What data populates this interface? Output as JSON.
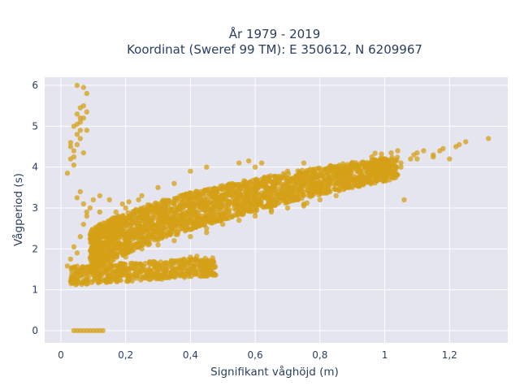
{
  "chart_data": {
    "type": "scatter",
    "title_line1": "År 1979 - 2019",
    "title_line2": "Koordinat (Sweref 99 TM): E 350612, N 6209967",
    "xlabel": "Signifikant våghöjd (m)",
    "ylabel": "Vågperiod (s)",
    "xlim": [
      -0.05,
      1.38
    ],
    "ylim": [
      -0.3,
      6.2
    ],
    "x_ticks": [
      0,
      0.2,
      0.4,
      0.6,
      0.8,
      1,
      1.2
    ],
    "x_tick_labels": [
      "0",
      "0,2",
      "0,4",
      "0,6",
      "0,8",
      "1",
      "1,2"
    ],
    "y_ticks": [
      0,
      1,
      2,
      3,
      4,
      5,
      6
    ],
    "y_tick_labels": [
      "0",
      "1",
      "2",
      "3",
      "4",
      "5",
      "6"
    ],
    "grid": true,
    "plot_bgcolor": "#E5E5F0",
    "marker_color": "#D4A017",
    "series": [
      {
        "points": [
          [
            0.04,
            0
          ],
          [
            0.05,
            0
          ],
          [
            0.06,
            0
          ],
          [
            0.07,
            0
          ],
          [
            0.08,
            0
          ],
          [
            0.09,
            0
          ],
          [
            0.1,
            0
          ],
          [
            0.11,
            0
          ],
          [
            0.12,
            0
          ],
          [
            0.13,
            0
          ],
          [
            0.02,
            1.58
          ],
          [
            0.03,
            1.2
          ],
          [
            0.03,
            1.75
          ],
          [
            0.04,
            1.35
          ],
          [
            0.04,
            2.05
          ],
          [
            0.05,
            1.15
          ],
          [
            0.05,
            1.9
          ],
          [
            0.06,
            2.3
          ],
          [
            0.06,
            1.5
          ],
          [
            0.07,
            2.6
          ],
          [
            0.08,
            1.25
          ],
          [
            0.08,
            2.8
          ],
          [
            0.09,
            3.0
          ],
          [
            0.1,
            2.2
          ],
          [
            0.1,
            3.2
          ],
          [
            0.11,
            1.4
          ],
          [
            0.12,
            2.9
          ],
          [
            0.12,
            3.3
          ],
          [
            0.14,
            2.5
          ],
          [
            0.15,
            3.2
          ],
          [
            0.03,
            4.2
          ],
          [
            0.03,
            4.6
          ],
          [
            0.04,
            4.4
          ],
          [
            0.04,
            5.0
          ],
          [
            0.05,
            4.8
          ],
          [
            0.05,
            5.3
          ],
          [
            0.06,
            5.1
          ],
          [
            0.06,
            5.45
          ],
          [
            0.07,
            5.2
          ],
          [
            0.07,
            5.5
          ],
          [
            0.08,
            4.9
          ],
          [
            0.08,
            5.8
          ],
          [
            0.05,
            6.0
          ],
          [
            0.07,
            5.95
          ],
          [
            0.06,
            5.2
          ],
          [
            0.04,
            4.05
          ],
          [
            0.03,
            4.5
          ],
          [
            0.06,
            4.7
          ],
          [
            0.08,
            5.35
          ],
          [
            0.07,
            4.35
          ],
          [
            0.02,
            3.85
          ],
          [
            0.04,
            4.25
          ],
          [
            0.05,
            4.55
          ],
          [
            0.06,
            4.9
          ],
          [
            0.05,
            5.05
          ],
          [
            0.06,
            3.4
          ],
          [
            0.07,
            3.1
          ],
          [
            0.08,
            2.9
          ],
          [
            0.05,
            3.25
          ],
          [
            0.15,
            1.3
          ],
          [
            0.2,
            1.35
          ],
          [
            0.25,
            1.45
          ],
          [
            0.3,
            1.6
          ],
          [
            0.35,
            1.7
          ],
          [
            0.4,
            1.8
          ],
          [
            0.15,
            2.0
          ],
          [
            0.2,
            2.3
          ],
          [
            0.25,
            2.5
          ],
          [
            0.3,
            2.7
          ],
          [
            0.35,
            2.9
          ],
          [
            0.4,
            3.0
          ],
          [
            0.45,
            3.1
          ],
          [
            0.5,
            3.2
          ],
          [
            0.55,
            3.3
          ],
          [
            0.6,
            3.4
          ],
          [
            0.65,
            3.5
          ],
          [
            0.7,
            3.6
          ],
          [
            0.75,
            3.7
          ],
          [
            0.8,
            3.8
          ],
          [
            0.85,
            3.9
          ],
          [
            0.9,
            4.0
          ],
          [
            0.95,
            4.1
          ],
          [
            1.0,
            4.2
          ],
          [
            0.25,
            3.3
          ],
          [
            0.3,
            3.5
          ],
          [
            0.35,
            3.6
          ],
          [
            0.4,
            3.9
          ],
          [
            0.45,
            4.0
          ],
          [
            0.55,
            4.1
          ],
          [
            0.6,
            4.0
          ],
          [
            0.7,
            3.9
          ],
          [
            0.45,
            2.4
          ],
          [
            0.5,
            2.6
          ],
          [
            0.55,
            2.7
          ],
          [
            0.6,
            2.8
          ],
          [
            0.65,
            2.9
          ],
          [
            0.7,
            3.0
          ],
          [
            0.75,
            3.1
          ],
          [
            0.8,
            3.2
          ],
          [
            0.85,
            3.3
          ],
          [
            0.9,
            3.5
          ],
          [
            0.95,
            3.7
          ],
          [
            1.0,
            3.9
          ],
          [
            0.2,
            1.8
          ],
          [
            0.25,
            2.0
          ],
          [
            0.3,
            2.1
          ],
          [
            0.35,
            2.2
          ],
          [
            0.4,
            2.3
          ],
          [
            0.45,
            2.5
          ],
          [
            0.5,
            2.8
          ],
          [
            0.55,
            2.9
          ],
          [
            0.6,
            3.0
          ],
          [
            0.65,
            3.2
          ],
          [
            0.7,
            3.3
          ],
          [
            0.75,
            3.4
          ],
          [
            0.8,
            3.5
          ],
          [
            0.85,
            3.6
          ],
          [
            0.9,
            3.7
          ],
          [
            0.95,
            3.8
          ],
          [
            1.0,
            3.9
          ],
          [
            1.05,
            4.1
          ],
          [
            1.1,
            4.2
          ],
          [
            1.15,
            4.3
          ],
          [
            1.02,
            4.35
          ],
          [
            1.04,
            4.4
          ],
          [
            1.1,
            4.35
          ],
          [
            1.12,
            4.4
          ],
          [
            1.18,
            4.45
          ],
          [
            1.2,
            4.2
          ],
          [
            1.06,
            3.2
          ],
          [
            1.05,
            4.0
          ],
          [
            1.08,
            4.2
          ],
          [
            1.09,
            4.3
          ],
          [
            1.15,
            4.25
          ],
          [
            1.22,
            4.5
          ],
          [
            1.25,
            4.62
          ],
          [
            1.32,
            4.7
          ],
          [
            0.99,
            4.32
          ],
          [
            0.96,
            4.25
          ],
          [
            0.58,
            4.15
          ],
          [
            0.62,
            4.1
          ],
          [
            0.75,
            4.1
          ],
          [
            0.97,
            4.34
          ],
          [
            1.23,
            4.55
          ],
          [
            1.17,
            4.4
          ],
          [
            0.6,
            2.9
          ],
          [
            0.65,
            2.95
          ],
          [
            0.75,
            3.05
          ],
          [
            0.76,
            3.12
          ],
          [
            0.32,
            1.65
          ],
          [
            0.38,
            1.75
          ],
          [
            0.42,
            1.82
          ],
          [
            0.18,
            1.25
          ],
          [
            0.22,
            1.3
          ],
          [
            0.28,
            1.4
          ],
          [
            0.27,
            2.1
          ],
          [
            0.33,
            2.4
          ],
          [
            0.36,
            2.35
          ],
          [
            0.42,
            2.6
          ],
          [
            0.22,
            2.8
          ],
          [
            0.28,
            3.0
          ],
          [
            0.24,
            3.2
          ],
          [
            0.2,
            3.0
          ],
          [
            0.18,
            2.7
          ],
          [
            0.16,
            2.4
          ],
          [
            0.17,
            2.9
          ],
          [
            0.19,
            3.1
          ],
          [
            0.21,
            3.15
          ],
          [
            0.12,
            2.6
          ]
        ]
      }
    ]
  }
}
